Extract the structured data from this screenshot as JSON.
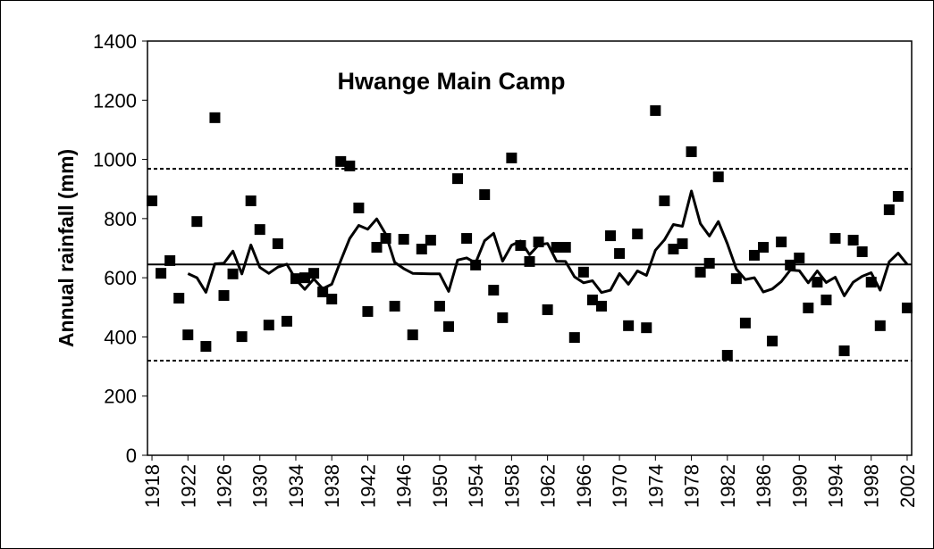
{
  "chart_data": {
    "type": "scatter",
    "title": "Hwange Main Camp",
    "y_label": "Annual rainfall (mm)",
    "x": [
      1918,
      1919,
      1920,
      1921,
      1922,
      1923,
      1924,
      1925,
      1926,
      1927,
      1928,
      1929,
      1930,
      1931,
      1932,
      1933,
      1934,
      1935,
      1936,
      1937,
      1938,
      1939,
      1940,
      1941,
      1942,
      1943,
      1944,
      1945,
      1946,
      1947,
      1948,
      1949,
      1950,
      1951,
      1952,
      1953,
      1954,
      1955,
      1956,
      1957,
      1958,
      1959,
      1960,
      1961,
      1962,
      1963,
      1964,
      1965,
      1966,
      1967,
      1968,
      1969,
      1970,
      1971,
      1972,
      1973,
      1974,
      1975,
      1976,
      1977,
      1978,
      1979,
      1980,
      1981,
      1982,
      1983,
      1984,
      1985,
      1986,
      1987,
      1988,
      1989,
      1990,
      1991,
      1992,
      1993,
      1994,
      1995,
      1996,
      1997,
      1998,
      1999,
      2000,
      2001,
      2002
    ],
    "series": [
      {
        "color": "#000000",
        "marker": "square",
        "values": [
          860,
          615,
          658,
          531,
          407,
          790,
          368,
          1141,
          540,
          613,
          401,
          860,
          763,
          440,
          715,
          453,
          597,
          600,
          615,
          552,
          528,
          993,
          978,
          836,
          486,
          703,
          733,
          504,
          730,
          407,
          697,
          727,
          504,
          435,
          935,
          733,
          643,
          881,
          558,
          465,
          1005,
          709,
          655,
          721,
          492,
          703,
          703,
          398,
          619,
          525,
          504,
          742,
          682,
          438,
          748,
          431,
          1165,
          860,
          697,
          715,
          1026,
          619,
          649,
          941,
          338,
          597,
          447,
          676,
          703,
          386,
          721,
          643,
          667,
          498,
          585,
          525,
          733,
          353,
          727,
          688,
          585,
          438,
          830,
          875,
          498
        ]
      },
      {
        "color": "#000000",
        "marker": "line",
        "values": [
          null,
          null,
          null,
          null,
          614,
          600,
          551,
          647,
          649,
          690,
          613,
          711,
          635,
          615,
          636,
          646,
          594,
          561,
          596,
          563,
          578,
          658,
          733,
          777,
          764,
          799,
          747,
          652,
          631,
          615,
          614,
          613,
          613,
          554,
          660,
          667,
          650,
          725,
          750,
          656,
          710,
          724,
          678,
          711,
          716,
          656,
          655,
          603,
          583,
          590,
          550,
          558,
          614,
          578,
          623,
          608,
          693,
          728,
          780,
          774,
          893,
          783,
          741,
          790,
          715,
          629,
          594,
          600,
          552,
          562,
          587,
          626,
          624,
          583,
          623,
          584,
          602,
          539,
          585,
          605,
          617,
          558,
          654,
          683,
          645
        ]
      }
    ],
    "reference_lines": [
      {
        "value": 645,
        "style": "solid"
      },
      {
        "value": 968,
        "style": "dotted"
      },
      {
        "value": 320,
        "style": "dotted"
      }
    ],
    "xlim": [
      1917.5,
      2002.5
    ],
    "xticks": [
      1918,
      1922,
      1926,
      1930,
      1934,
      1938,
      1942,
      1946,
      1950,
      1954,
      1958,
      1962,
      1966,
      1970,
      1974,
      1978,
      1982,
      1986,
      1990,
      1994,
      1998,
      2002
    ],
    "ylim": [
      0,
      1400
    ],
    "yticks": [
      0,
      200,
      400,
      600,
      800,
      1000,
      1200,
      1400
    ]
  }
}
